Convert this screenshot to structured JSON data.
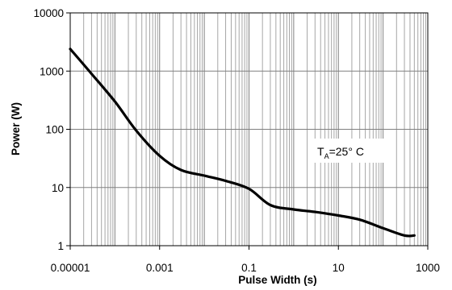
{
  "chart_data": {
    "type": "line",
    "title": "",
    "xlabel": "Pulse Width (s)",
    "ylabel": "Power (W)",
    "x_scale": "log",
    "y_scale": "log",
    "xlim": [
      1e-05,
      1000
    ],
    "ylim": [
      1,
      10000
    ],
    "x_ticks": [
      "0.00001",
      "0.001",
      "0.1",
      "10",
      "1000"
    ],
    "y_ticks": [
      "1",
      "10",
      "100",
      "1000",
      "10000"
    ],
    "grid": true,
    "legend": "none",
    "annotation": {
      "main": "T",
      "sub": "A",
      "rest": "=25° C"
    },
    "series": [
      {
        "color": "#000000",
        "x": [
          1e-05,
          3e-05,
          0.0001,
          0.0003,
          0.001,
          0.003,
          0.01,
          0.03,
          0.1,
          0.3,
          1,
          3,
          10,
          30,
          100,
          300,
          500
        ],
        "y": [
          2400,
          900,
          300,
          95,
          35,
          20,
          16,
          13,
          9.5,
          5,
          4.2,
          3.8,
          3.3,
          2.8,
          2.0,
          1.5,
          1.5
        ]
      }
    ]
  }
}
